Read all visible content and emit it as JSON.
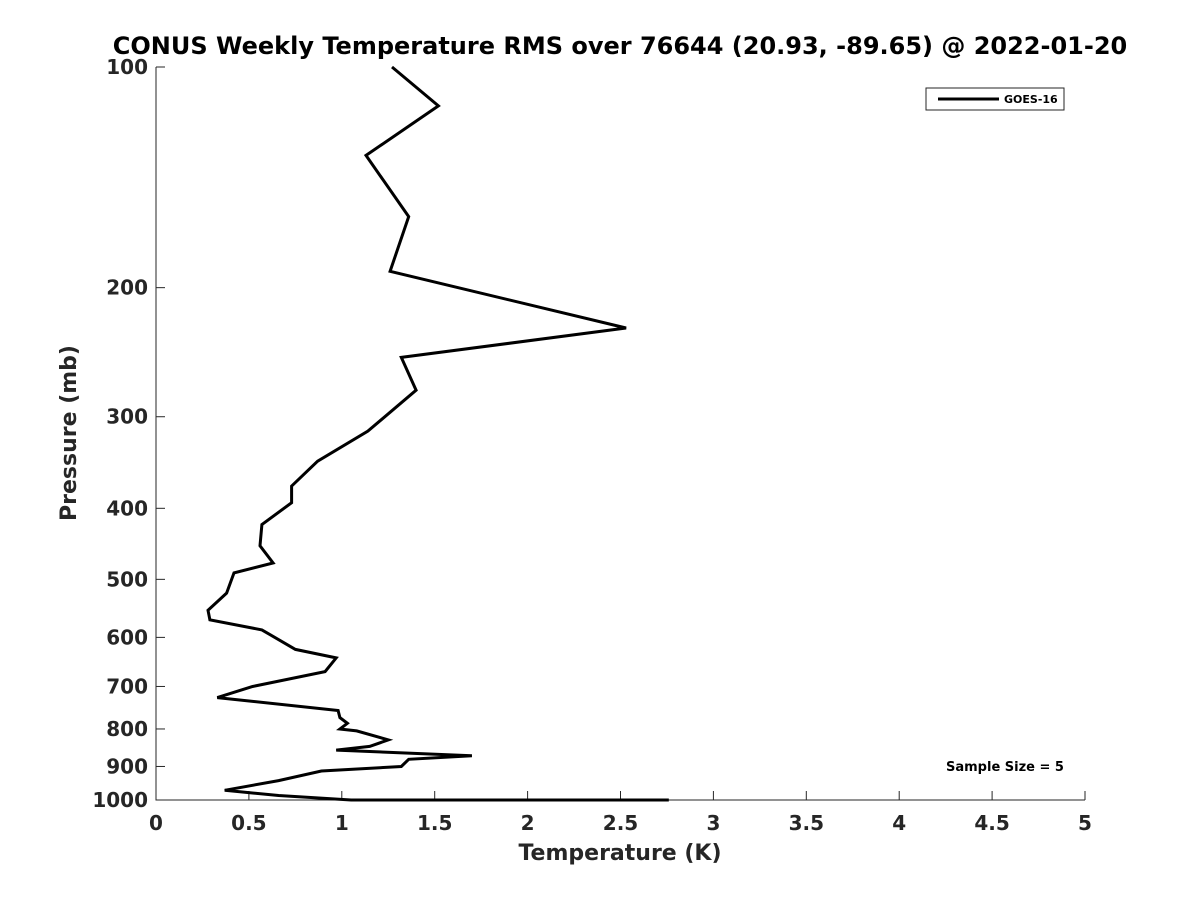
{
  "chart_data": {
    "type": "line",
    "title": "CONUS Weekly Temperature RMS over 76644 (20.93, -89.65) @ 2022-01-20",
    "xlabel": "Temperature (K)",
    "ylabel": "Pressure (mb)",
    "xlim": [
      0,
      5
    ],
    "ylim": [
      1000,
      100
    ],
    "yscale": "log",
    "x_ticks": [
      0,
      0.5,
      1,
      1.5,
      2,
      2.5,
      3,
      3.5,
      4,
      4.5,
      5
    ],
    "x_tick_labels": [
      "0",
      "0.5",
      "1",
      "1.5",
      "2",
      "2.5",
      "3",
      "3.5",
      "4",
      "4.5",
      "5"
    ],
    "y_ticks": [
      100,
      200,
      300,
      400,
      500,
      600,
      700,
      800,
      900,
      1000
    ],
    "y_tick_labels": [
      "100",
      "200",
      "300",
      "400",
      "500",
      "600",
      "700",
      "800",
      "900",
      "1000"
    ],
    "grid": false,
    "legend_position": "top-right",
    "annotation": "Sample Size = 5",
    "series": [
      {
        "name": "GOES-16",
        "color": "#000000",
        "x": [
          1.27,
          1.52,
          1.13,
          1.36,
          1.26,
          2.53,
          1.32,
          1.4,
          1.14,
          0.87,
          0.73,
          0.73,
          0.57,
          0.56,
          0.63,
          0.42,
          0.38,
          0.28,
          0.29,
          0.57,
          0.75,
          0.97,
          0.91,
          0.52,
          0.33,
          0.98,
          0.99,
          1.03,
          0.99,
          1.08,
          1.25,
          1.15,
          0.97,
          1.7,
          1.36,
          1.32,
          0.89,
          0.66,
          0.37,
          0.66,
          1.05,
          2.48,
          2.76
        ],
        "y": [
          100,
          113,
          132,
          160,
          190,
          227,
          249,
          276,
          314,
          345,
          373,
          393,
          421,
          450,
          475,
          490,
          522,
          551,
          568,
          586,
          623,
          640,
          668,
          700,
          725,
          755,
          772,
          786,
          800,
          805,
          828,
          845,
          855,
          870,
          880,
          900,
          913,
          941,
          970,
          986,
          1000,
          1000,
          1000
        ]
      }
    ]
  }
}
